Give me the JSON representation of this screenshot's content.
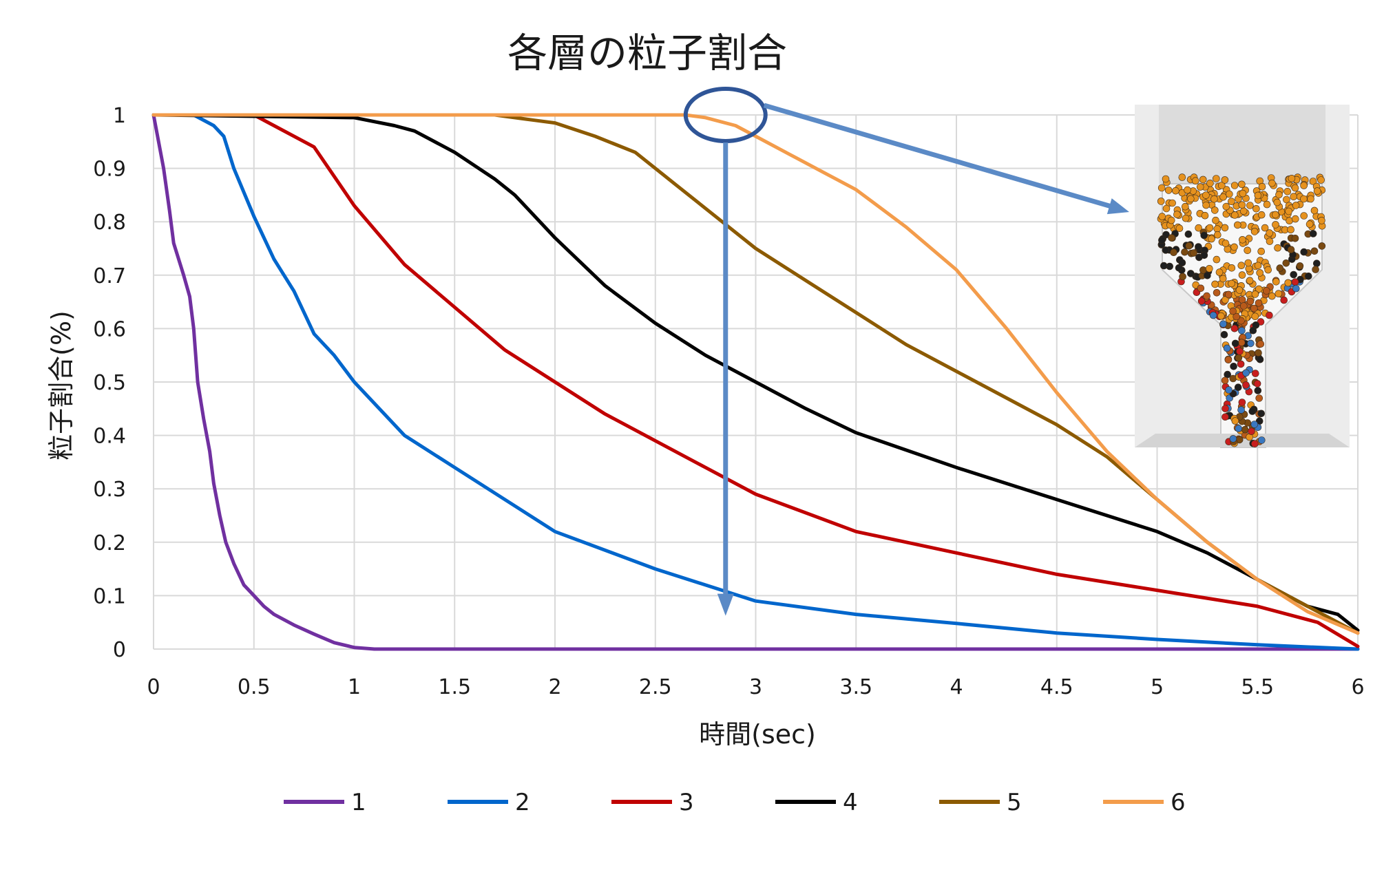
{
  "chart_data": {
    "type": "line",
    "title": "各層の粒子割合",
    "xlabel": "時間(sec)",
    "ylabel": "粒子割合(%)",
    "xlim": [
      0,
      6
    ],
    "ylim": [
      0,
      1
    ],
    "x_ticks": [
      "0",
      "0.5",
      "1",
      "1.5",
      "2",
      "2.5",
      "3",
      "3.5",
      "4",
      "4.5",
      "5",
      "5.5",
      "6"
    ],
    "y_ticks": [
      "0",
      "0.1",
      "0.2",
      "0.3",
      "0.4",
      "0.5",
      "0.6",
      "0.7",
      "0.8",
      "0.9",
      "1"
    ],
    "grid": true,
    "legend_position": "bottom",
    "series": [
      {
        "name": "1",
        "color": "#7030A0",
        "points": [
          [
            0,
            1
          ],
          [
            0.05,
            0.9
          ],
          [
            0.08,
            0.82
          ],
          [
            0.1,
            0.76
          ],
          [
            0.15,
            0.7
          ],
          [
            0.18,
            0.66
          ],
          [
            0.2,
            0.6
          ],
          [
            0.22,
            0.5
          ],
          [
            0.25,
            0.43
          ],
          [
            0.28,
            0.37
          ],
          [
            0.3,
            0.31
          ],
          [
            0.33,
            0.25
          ],
          [
            0.36,
            0.2
          ],
          [
            0.4,
            0.16
          ],
          [
            0.45,
            0.12
          ],
          [
            0.5,
            0.1
          ],
          [
            0.55,
            0.08
          ],
          [
            0.6,
            0.065
          ],
          [
            0.7,
            0.045
          ],
          [
            0.8,
            0.028
          ],
          [
            0.9,
            0.012
          ],
          [
            1.0,
            0.003
          ],
          [
            1.1,
            0.0
          ],
          [
            6,
            0.0
          ]
        ]
      },
      {
        "name": "2",
        "color": "#0066CC",
        "points": [
          [
            0,
            1
          ],
          [
            0.2,
            1
          ],
          [
            0.3,
            0.98
          ],
          [
            0.35,
            0.96
          ],
          [
            0.4,
            0.9
          ],
          [
            0.5,
            0.81
          ],
          [
            0.6,
            0.73
          ],
          [
            0.7,
            0.67
          ],
          [
            0.8,
            0.59
          ],
          [
            0.9,
            0.55
          ],
          [
            1.0,
            0.5
          ],
          [
            1.25,
            0.4
          ],
          [
            1.5,
            0.34
          ],
          [
            2.0,
            0.22
          ],
          [
            2.5,
            0.15
          ],
          [
            3.0,
            0.09
          ],
          [
            3.5,
            0.065
          ],
          [
            4.0,
            0.048
          ],
          [
            4.5,
            0.03
          ],
          [
            5.0,
            0.018
          ],
          [
            5.5,
            0.008
          ],
          [
            6.0,
            0.0
          ]
        ]
      },
      {
        "name": "3",
        "color": "#C00000",
        "points": [
          [
            0,
            1
          ],
          [
            0.5,
            1
          ],
          [
            0.6,
            0.98
          ],
          [
            0.8,
            0.94
          ],
          [
            1.0,
            0.83
          ],
          [
            1.25,
            0.72
          ],
          [
            1.5,
            0.64
          ],
          [
            1.75,
            0.56
          ],
          [
            2.0,
            0.5
          ],
          [
            2.25,
            0.44
          ],
          [
            2.5,
            0.39
          ],
          [
            2.75,
            0.34
          ],
          [
            3.0,
            0.29
          ],
          [
            3.5,
            0.22
          ],
          [
            4.0,
            0.18
          ],
          [
            4.5,
            0.14
          ],
          [
            5.0,
            0.11
          ],
          [
            5.5,
            0.08
          ],
          [
            5.8,
            0.05
          ],
          [
            6.0,
            0.005
          ]
        ]
      },
      {
        "name": "4",
        "color": "#000000",
        "points": [
          [
            0,
            1
          ],
          [
            1.0,
            0.995
          ],
          [
            1.2,
            0.98
          ],
          [
            1.3,
            0.97
          ],
          [
            1.5,
            0.93
          ],
          [
            1.7,
            0.88
          ],
          [
            1.8,
            0.85
          ],
          [
            2.0,
            0.77
          ],
          [
            2.25,
            0.68
          ],
          [
            2.5,
            0.61
          ],
          [
            2.75,
            0.55
          ],
          [
            3.0,
            0.5
          ],
          [
            3.25,
            0.45
          ],
          [
            3.5,
            0.405
          ],
          [
            4.0,
            0.34
          ],
          [
            4.5,
            0.28
          ],
          [
            5.0,
            0.22
          ],
          [
            5.25,
            0.18
          ],
          [
            5.5,
            0.13
          ],
          [
            5.75,
            0.08
          ],
          [
            5.9,
            0.065
          ],
          [
            6.0,
            0.035
          ]
        ]
      },
      {
        "name": "5",
        "color": "#8C5A00",
        "points": [
          [
            0,
            1
          ],
          [
            1.7,
            1
          ],
          [
            1.9,
            0.99
          ],
          [
            2.0,
            0.985
          ],
          [
            2.2,
            0.96
          ],
          [
            2.4,
            0.93
          ],
          [
            2.6,
            0.87
          ],
          [
            2.8,
            0.81
          ],
          [
            3.0,
            0.75
          ],
          [
            3.25,
            0.69
          ],
          [
            3.5,
            0.63
          ],
          [
            3.75,
            0.57
          ],
          [
            4.0,
            0.52
          ],
          [
            4.5,
            0.42
          ],
          [
            4.75,
            0.36
          ],
          [
            5.0,
            0.28
          ],
          [
            5.25,
            0.2
          ],
          [
            5.5,
            0.13
          ],
          [
            5.75,
            0.08
          ],
          [
            6.0,
            0.03
          ]
        ]
      },
      {
        "name": "6",
        "color": "#F39C4B",
        "points": [
          [
            0,
            1
          ],
          [
            2.5,
            1
          ],
          [
            2.65,
            1
          ],
          [
            2.75,
            0.995
          ],
          [
            2.9,
            0.98
          ],
          [
            3.0,
            0.96
          ],
          [
            3.2,
            0.92
          ],
          [
            3.4,
            0.88
          ],
          [
            3.5,
            0.86
          ],
          [
            3.75,
            0.79
          ],
          [
            4.0,
            0.71
          ],
          [
            4.25,
            0.6
          ],
          [
            4.5,
            0.48
          ],
          [
            4.75,
            0.37
          ],
          [
            5.0,
            0.28
          ],
          [
            5.25,
            0.2
          ],
          [
            5.5,
            0.13
          ],
          [
            5.75,
            0.07
          ],
          [
            6.0,
            0.03
          ]
        ]
      }
    ]
  },
  "annotation": {
    "circle_color": "#2F5597",
    "arrow_color": "#5B8AC6",
    "highlight_x": 2.85,
    "highlight_y": 1.0,
    "arrow_down_end_y": 0.07
  },
  "inset": {
    "image_name": "particle-hopper-simulation-image",
    "particle_colors": [
      "#E6921E",
      "#1F1F1F",
      "#C81E1E",
      "#7A4A12",
      "#3A78C0",
      "#B85A1A"
    ]
  }
}
